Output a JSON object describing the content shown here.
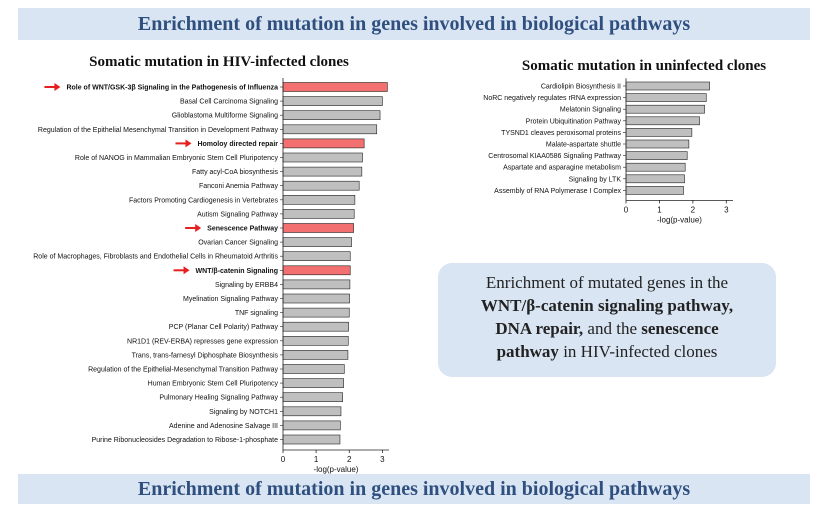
{
  "banner": {
    "top": "Enrichment of mutation in genes involved in biological pathways",
    "bottom": "Enrichment of mutation in genes involved in biological pathways"
  },
  "colors": {
    "normal_bar": "#bfbfbf",
    "highlight_bar": "#f2706f",
    "arrow": "#e62020",
    "banner_bg": "#d9e5f3"
  },
  "callout": {
    "line1": "Enrichment of mutated genes in the",
    "b1": "WNT/β-catenin signaling pathway,",
    "b2": "DNA repair,",
    "t2": " and the ",
    "b3": "senescence",
    "b4": "pathway",
    "t3": " in HIV-infected clones"
  },
  "chart_data": [
    {
      "type": "bar",
      "orientation": "horizontal",
      "title": "Somatic mutation in HIV-infected clones",
      "xlabel": "-log(p-value)",
      "xlim": [
        0,
        3.2
      ],
      "xticks": [
        0,
        1,
        2,
        3
      ],
      "categories": [
        "Role of WNT/GSK-3β Signaling in the Pathogenesis of Influenza",
        "Basal Cell Carcinoma Signaling",
        "Glioblastoma Multiforme Signaling",
        "Regulation of the Epithelial Mesenchymal Transition in Development Pathway",
        "Homoloy directed repair",
        "Role of NANOG in Mammalian Embryonic Stem Cell Pluripotency",
        "Fatty acyl-CoA biosynthesis",
        "Fanconi Anemia Pathway",
        "Factors Promoting Cardiogenesis in Vertebrates",
        "Autism Signaling Pathway",
        "Senescence Pathway",
        "Ovarian Cancer Signaling",
        "Role of Macrophages, Fibroblasts and Endothelial Cells in Rheumatoid Arthritis",
        "WNT/β-catenin Signaling",
        "Signaling by ERBB4",
        "Myelination Signaling Pathway",
        "TNF signaling",
        "PCP (Planar Cell Polarity) Pathway",
        "NR1D1 (REV-ERBA) represses gene expression",
        "Trans, trans-farnesyl Diphosphate Biosynthesis",
        "Regulation of the Epithelial-Mesenchymal Transition Pathway",
        "Human Embryonic Stem Cell Pluripotency",
        "Pulmonary Healing Signaling Pathway",
        "Signaling by NOTCH1",
        "Adenine and Adenosine Salvage III",
        "Purine Ribonucleosides Degradation to Ribose-1-phosphate"
      ],
      "values": [
        3.15,
        3.0,
        2.93,
        2.83,
        2.45,
        2.4,
        2.38,
        2.3,
        2.17,
        2.15,
        2.13,
        2.07,
        2.03,
        2.03,
        2.02,
        2.01,
        2.0,
        1.98,
        1.97,
        1.96,
        1.85,
        1.83,
        1.8,
        1.75,
        1.73,
        1.72
      ],
      "highlighted": [
        0,
        4,
        10,
        13
      ]
    },
    {
      "type": "bar",
      "orientation": "horizontal",
      "title": "Somatic mutation in uninfected clones",
      "xlabel": "-log(p-value)",
      "xlim": [
        0,
        3.2
      ],
      "xticks": [
        0,
        1,
        2,
        3
      ],
      "categories": [
        "Cardiolipin Biosynthesis II",
        "NoRC negatively regulates rRNA expression",
        "Melatonin Signaling",
        "Protein Ubiquitination Pathway",
        "TYSND1 cleaves peroxisomal proteins",
        "Malate-aspartate shuttle",
        "Centrosomal KIAA0586 Signaling Pathway",
        "Aspartate and asparagine metabolism",
        "Signaling by LTK",
        "Assembly of RNA Polymerase I Complex"
      ],
      "values": [
        2.5,
        2.4,
        2.35,
        2.2,
        1.97,
        1.88,
        1.83,
        1.77,
        1.75,
        1.72
      ],
      "highlighted": []
    }
  ]
}
